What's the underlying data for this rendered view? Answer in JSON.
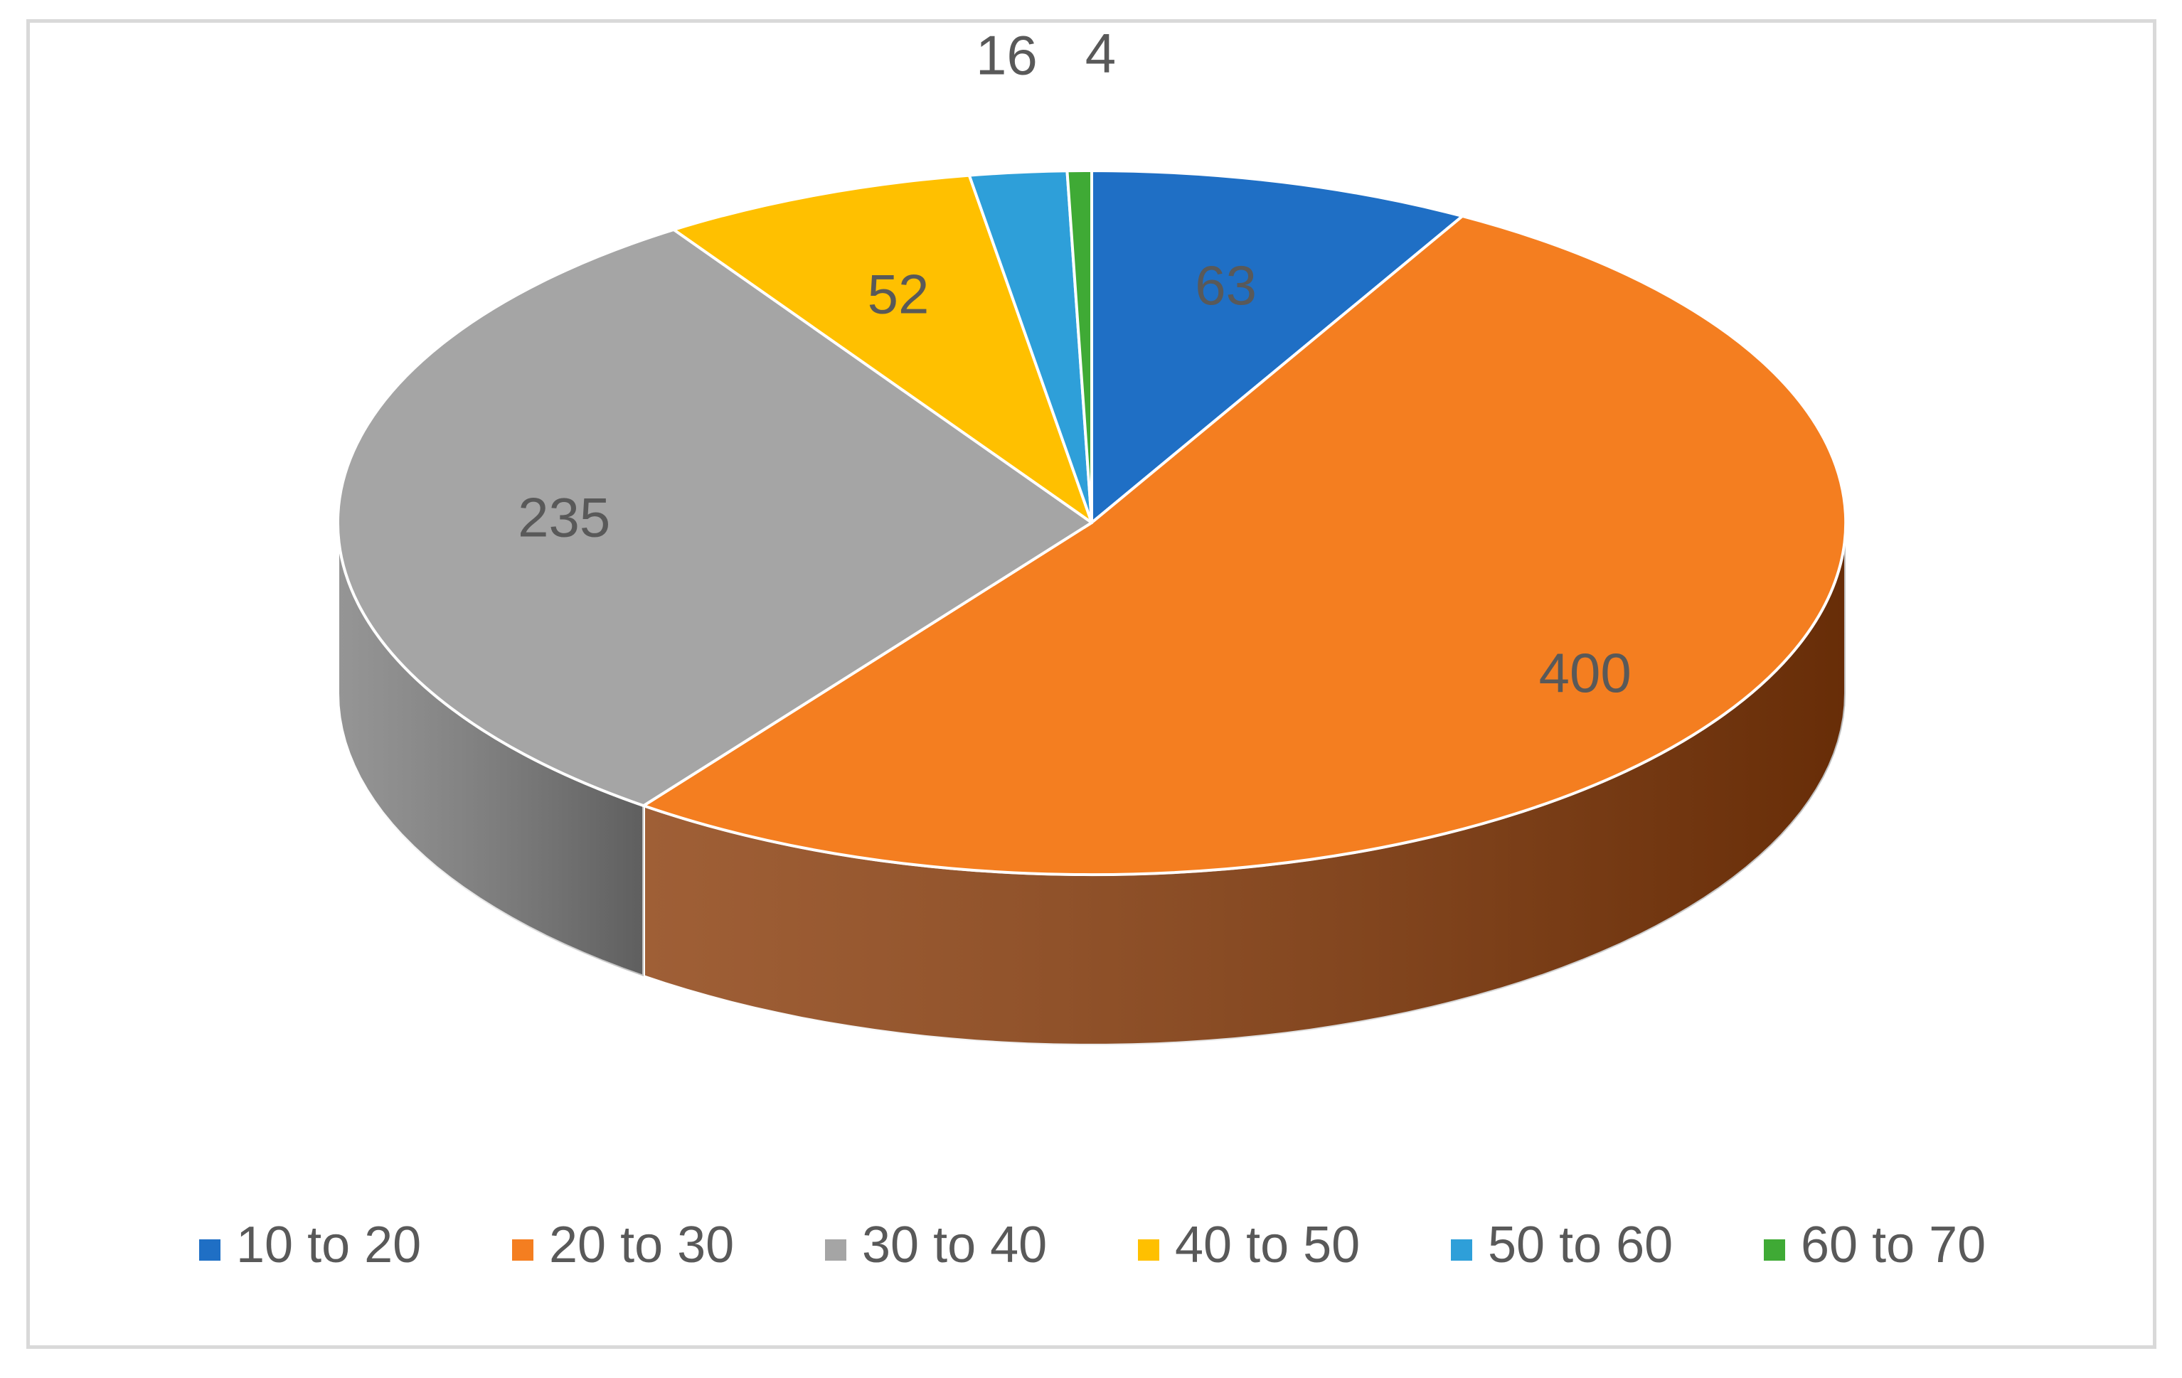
{
  "chart_data": {
    "type": "pie",
    "style": "3d",
    "categories": [
      "10 to 20",
      "20 to 30",
      "30 to 40",
      "40 to 50",
      "50 to 60",
      "60 to 70"
    ],
    "values": [
      63,
      400,
      235,
      52,
      16,
      4
    ],
    "colors": [
      "#1f6fc5",
      "#f47e20",
      "#a5a5a5",
      "#ffc000",
      "#2e9fd9",
      "#3faa35"
    ],
    "side_colors": [
      "#144a84",
      "#8a3c0a",
      "#7e7e7e",
      "#b38600",
      "#1d6f99",
      "#2a7524"
    ],
    "legend_position": "bottom",
    "data_labels": true
  }
}
